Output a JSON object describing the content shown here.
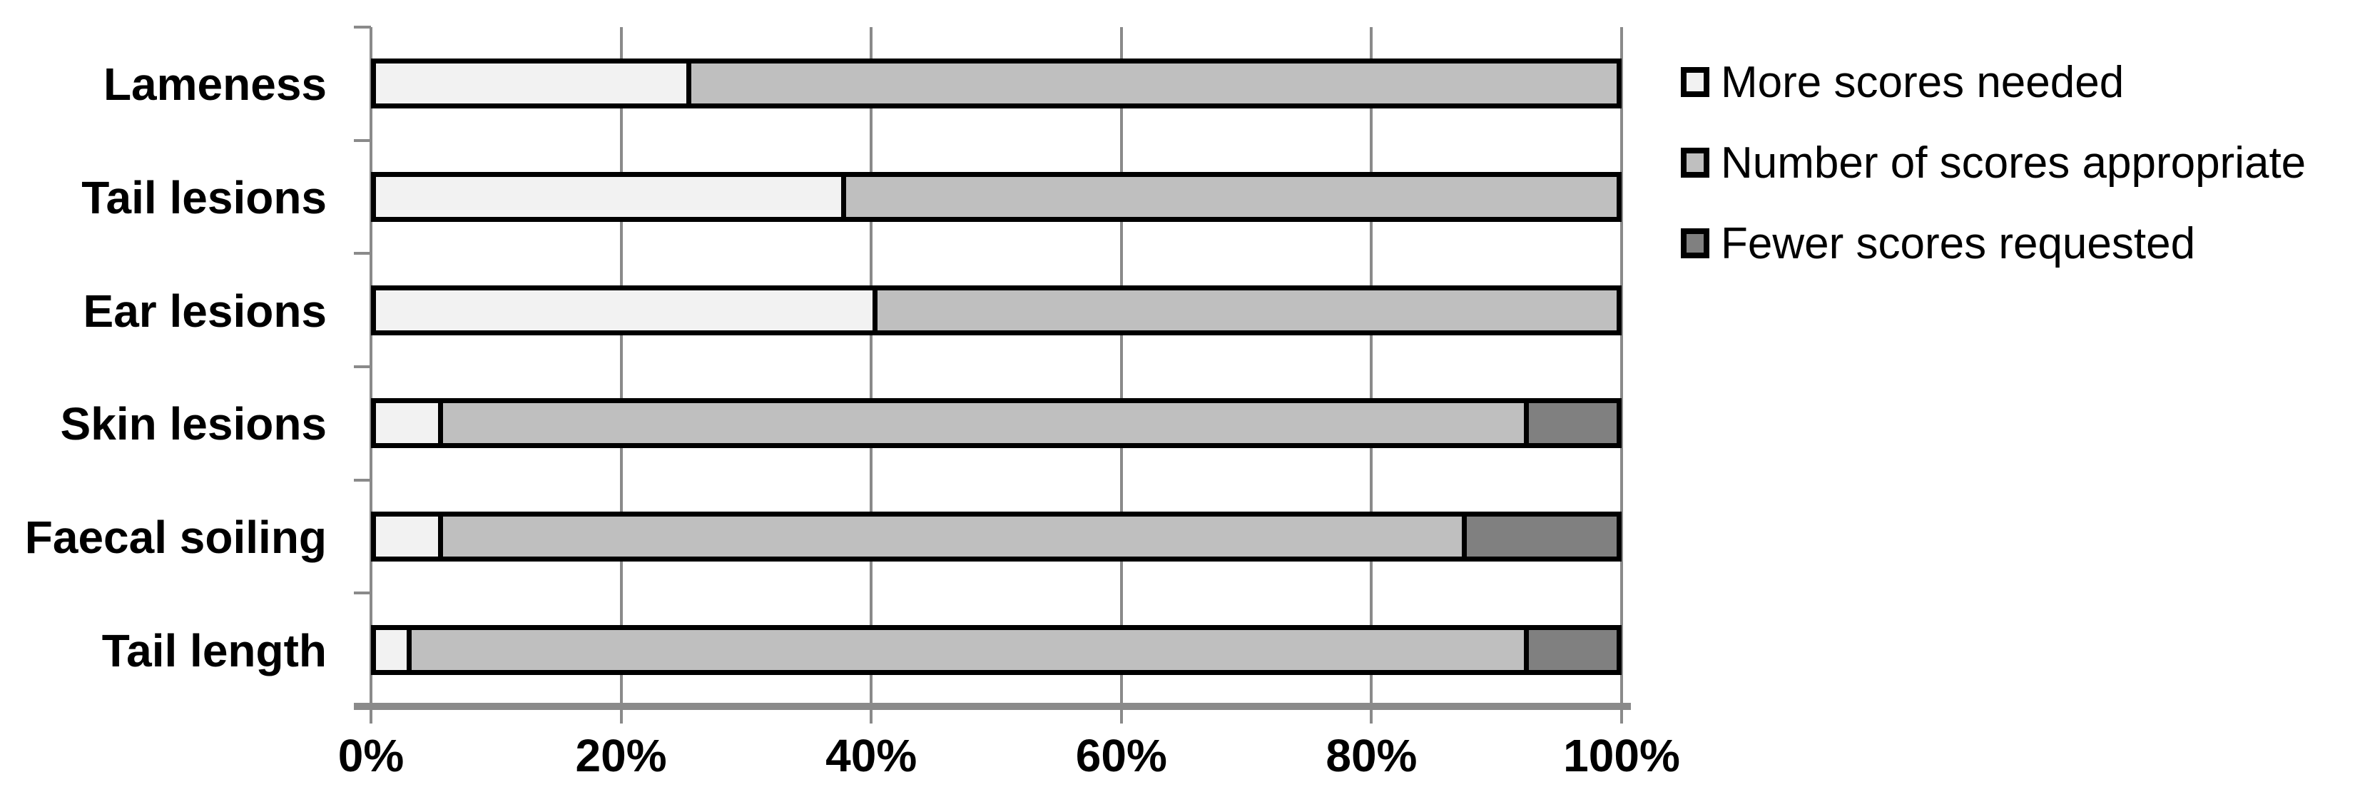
{
  "chart_data": {
    "type": "bar",
    "variant": "horizontal-stacked-100pct",
    "title": "",
    "categories": [
      "Lameness",
      "Tail lesions",
      "Ear lesions",
      "Skin lesions",
      "Faecal soiling",
      "Tail length"
    ],
    "series": [
      {
        "name": "More scores needed",
        "color": "#f2f2f2",
        "values": [
          25,
          37.5,
          40,
          5,
          5,
          2.5
        ]
      },
      {
        "name": "Number of scores appropriate",
        "color": "#bfbfbf",
        "values": [
          75,
          62.5,
          60,
          87.5,
          82.5,
          90
        ]
      },
      {
        "name": "Fewer scores requested",
        "color": "#808080",
        "values": [
          0,
          0,
          0,
          7.5,
          12.5,
          7.5
        ]
      }
    ],
    "x_axis": {
      "min": 0,
      "max": 100,
      "tick_values": [
        0,
        20,
        40,
        60,
        80,
        100
      ],
      "tick_labels": [
        "0%",
        "20%",
        "40%",
        "60%",
        "80%",
        "100%"
      ],
      "grid": true
    },
    "y_axis": {
      "category_boundary_ticks": 7
    },
    "legend": {
      "position": "right",
      "entries": [
        "More scores needed",
        "Number of scores appropriate",
        "Fewer scores requested"
      ]
    },
    "styles": {
      "grid_color": "#8a8a8a",
      "axis_color": "#8a8a8a",
      "bar_border_color": "#000000",
      "label_color": "#000000",
      "background_color": "#ffffff"
    }
  }
}
